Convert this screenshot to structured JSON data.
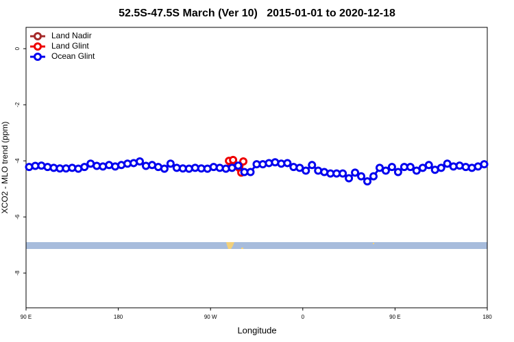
{
  "chart_data": {
    "type": "line",
    "title": "52.5S-47.5S March (Ver 10)   2015-01-01 to 2020-12-18",
    "xlabel": "Longitude",
    "ylabel": "XCO2 - MLO trend (ppm)",
    "xlim": [
      90,
      540
    ],
    "xticks": [
      {
        "value": 90,
        "label": "90 E"
      },
      {
        "value": 180,
        "label": "180"
      },
      {
        "value": 270,
        "label": "90 W"
      },
      {
        "value": 360,
        "label": "0"
      },
      {
        "value": 450,
        "label": "90 E"
      },
      {
        "value": 540,
        "label": "180"
      }
    ],
    "ylim": [
      -9.24,
      0.76
    ],
    "yticks": [
      0,
      -2,
      -4,
      -6,
      -8
    ],
    "legend": "top-left",
    "series": [
      {
        "name": "Land Nadir",
        "color": "#a52a2a",
        "x": [],
        "values": []
      },
      {
        "name": "Land Glint",
        "color": "#ee0000",
        "x": [
          288,
          290,
          292,
          298,
          300,
          302
        ],
        "values": [
          -4.0,
          -4.2,
          -3.97,
          -4.25,
          -4.42,
          -4.02
        ]
      },
      {
        "name": "Ocean Glint",
        "color": "#0000ee",
        "x": [
          93,
          99,
          105,
          111,
          117,
          123,
          129,
          135,
          141,
          147,
          153,
          159,
          165,
          171,
          177,
          183,
          189,
          195,
          201,
          207,
          213,
          219,
          225,
          231,
          237,
          243,
          249,
          255,
          261,
          267,
          273,
          279,
          285,
          291,
          297,
          303,
          309,
          315,
          321,
          327,
          333,
          339,
          345,
          351,
          357,
          363,
          369,
          375,
          381,
          387,
          393,
          399,
          405,
          411,
          417,
          423,
          429,
          435,
          441,
          447,
          453,
          459,
          465,
          471,
          477,
          483,
          489,
          495,
          501,
          507,
          513,
          519,
          525,
          531,
          537
        ],
        "values": [
          -4.22,
          -4.18,
          -4.17,
          -4.22,
          -4.25,
          -4.27,
          -4.27,
          -4.25,
          -4.28,
          -4.22,
          -4.1,
          -4.18,
          -4.2,
          -4.15,
          -4.2,
          -4.15,
          -4.1,
          -4.08,
          -4.02,
          -4.18,
          -4.15,
          -4.22,
          -4.28,
          -4.1,
          -4.25,
          -4.27,
          -4.28,
          -4.25,
          -4.27,
          -4.28,
          -4.22,
          -4.25,
          -4.28,
          -4.25,
          -4.17,
          -4.4,
          -4.4,
          -4.12,
          -4.12,
          -4.08,
          -4.05,
          -4.1,
          -4.08,
          -4.22,
          -4.25,
          -4.35,
          -4.15,
          -4.35,
          -4.4,
          -4.45,
          -4.45,
          -4.45,
          -4.62,
          -4.42,
          -4.55,
          -4.73,
          -4.55,
          -4.25,
          -4.35,
          -4.22,
          -4.4,
          -4.22,
          -4.22,
          -4.35,
          -4.25,
          -4.15,
          -4.32,
          -4.25,
          -4.1,
          -4.2,
          -4.17,
          -4.22,
          -4.25,
          -4.2,
          -4.12
        ]
      }
    ]
  }
}
